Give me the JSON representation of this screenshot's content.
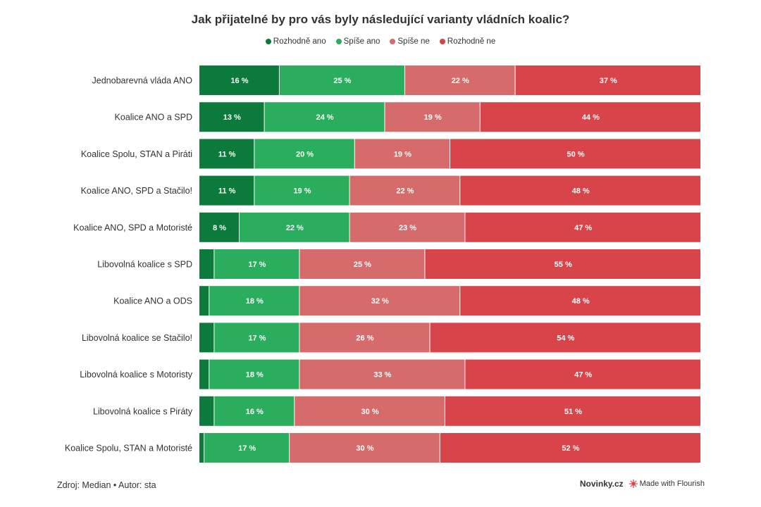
{
  "colors": {
    "rozhodne_ano": "#0b7a3b",
    "spise_ano": "#2aad5c",
    "spise_ne": "#d66b6b",
    "rozhodne_ne": "#d7454b"
  },
  "chart_data": {
    "type": "bar",
    "orientation": "horizontal",
    "stacked": true,
    "title": "Jak přijatelné by pro vás byly následující varianty vládních koalic?",
    "legend_position": "top-center",
    "categories": [
      "Jednobarevná vláda ANO",
      "Koalice ANO a SPD",
      "Koalice Spolu, STAN a Piráti",
      "Koalice ANO, SPD a Stačilo!",
      "Koalice ANO, SPD a Motoristé",
      "Libovolná koalice s SPD",
      "Koalice ANO a ODS",
      "Libovolná koalice se Stačilo!",
      "Libovolná koalice s Motoristy",
      "Libovolná koalice s Piráty",
      "Koalice Spolu, STAN a Motoristé"
    ],
    "series": [
      {
        "name": "Rozhodně ano",
        "color": "#0b7a3b",
        "values": [
          16,
          13,
          11,
          11,
          8,
          3,
          2,
          3,
          2,
          3,
          1
        ]
      },
      {
        "name": "Spíše ano",
        "color": "#2aad5c",
        "values": [
          25,
          24,
          20,
          19,
          22,
          17,
          18,
          17,
          18,
          16,
          17
        ]
      },
      {
        "name": "Spíše ne",
        "color": "#d66b6b",
        "values": [
          22,
          19,
          19,
          22,
          23,
          25,
          32,
          26,
          33,
          30,
          30
        ]
      },
      {
        "name": "Rozhodně ne",
        "color": "#d7454b",
        "values": [
          37,
          44,
          50,
          48,
          47,
          55,
          48,
          54,
          47,
          51,
          52
        ]
      }
    ],
    "value_suffix": " %",
    "label_min_value": 5,
    "xlim": [
      0,
      100
    ]
  },
  "footer": {
    "source": "Zdroj: Median • Autor: sta",
    "brand": "Novinky.cz",
    "made_with": "Made with Flourish"
  }
}
